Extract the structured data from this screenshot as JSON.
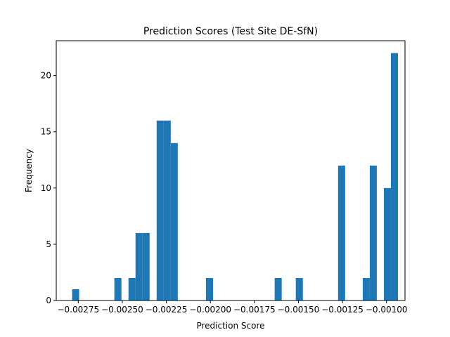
{
  "chart_data": {
    "type": "bar",
    "title": "Prediction Scores (Test Site DE-SfN)",
    "xlabel": "Prediction Score",
    "ylabel": "Frequency",
    "bar_color": "#1f77b4",
    "xlim": [
      -0.002875,
      -0.000895
    ],
    "ylim": [
      0,
      23.1
    ],
    "x_ticks": [
      {
        "value": -0.00275,
        "label": "−0.00275"
      },
      {
        "value": -0.0025,
        "label": "−0.00250"
      },
      {
        "value": -0.00225,
        "label": "−0.00225"
      },
      {
        "value": -0.002,
        "label": "−0.00200"
      },
      {
        "value": -0.00175,
        "label": "−0.00175"
      },
      {
        "value": -0.0015,
        "label": "−0.00150"
      },
      {
        "value": -0.00125,
        "label": "−0.00125"
      },
      {
        "value": -0.001,
        "label": "−0.00100"
      }
    ],
    "y_ticks": [
      {
        "value": 0,
        "label": "0"
      },
      {
        "value": 5,
        "label": "5"
      },
      {
        "value": 10,
        "label": "10"
      },
      {
        "value": 15,
        "label": "15"
      },
      {
        "value": 20,
        "label": "20"
      }
    ],
    "bins": [
      {
        "x0": -0.002785,
        "x1": -0.002745,
        "value": 1
      },
      {
        "x0": -0.002545,
        "x1": -0.002505,
        "value": 2
      },
      {
        "x0": -0.002505,
        "x1": -0.002465,
        "value": 0
      },
      {
        "x0": -0.002465,
        "x1": -0.002425,
        "value": 2
      },
      {
        "x0": -0.002425,
        "x1": -0.002385,
        "value": 6
      },
      {
        "x0": -0.002385,
        "x1": -0.002345,
        "value": 6
      },
      {
        "x0": -0.002345,
        "x1": -0.002305,
        "value": 0
      },
      {
        "x0": -0.002305,
        "x1": -0.002265,
        "value": 16
      },
      {
        "x0": -0.002265,
        "x1": -0.002225,
        "value": 16
      },
      {
        "x0": -0.002225,
        "x1": -0.002185,
        "value": 14
      },
      {
        "x0": -0.002025,
        "x1": -0.001985,
        "value": 2
      },
      {
        "x0": -0.001635,
        "x1": -0.001595,
        "value": 2
      },
      {
        "x0": -0.001515,
        "x1": -0.001475,
        "value": 2
      },
      {
        "x0": -0.001275,
        "x1": -0.001235,
        "value": 12
      },
      {
        "x0": -0.001135,
        "x1": -0.001095,
        "value": 2
      },
      {
        "x0": -0.001095,
        "x1": -0.001055,
        "value": 12
      },
      {
        "x0": -0.001015,
        "x1": -0.000975,
        "value": 10
      },
      {
        "x0": -0.000975,
        "x1": -0.000935,
        "value": 22
      }
    ]
  }
}
